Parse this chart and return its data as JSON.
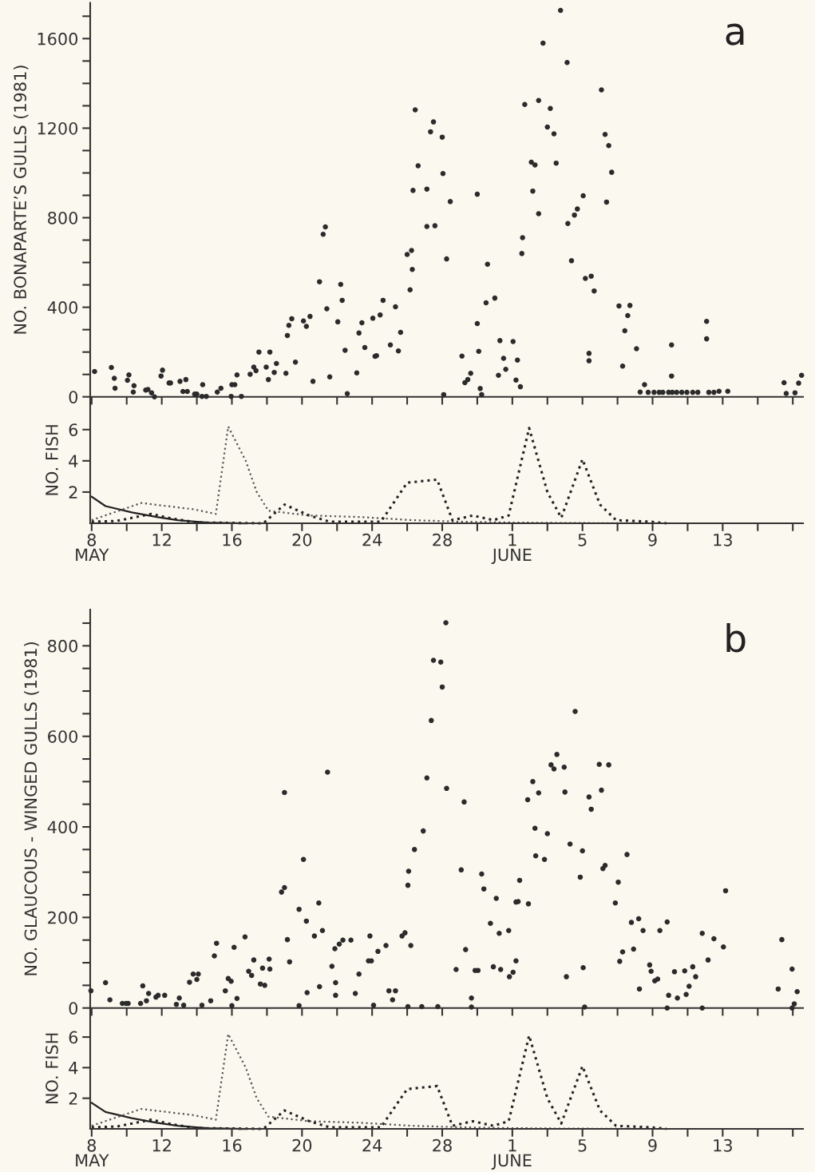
{
  "chart_data": [
    {
      "type": "scatter",
      "ylabel": "NO. BONAPARTE’S GULLS (1981)",
      "annotations": [
        "a"
      ],
      "marker": "circle",
      "grid": false,
      "tick_labels": "y",
      "xlim": [
        "1981-05-07T22:00",
        "1981-06-17T14:00"
      ],
      "ylim": [
        0,
        1760
      ],
      "xticks": [
        {
          "value": "1981-05-08",
          "label": null
        },
        {
          "value": "1981-05-10",
          "label": null
        },
        {
          "value": "1981-05-12",
          "label": null
        },
        {
          "value": "1981-05-14",
          "label": null
        },
        {
          "value": "1981-05-16",
          "label": null
        },
        {
          "value": "1981-05-18",
          "label": null
        },
        {
          "value": "1981-05-20",
          "label": null
        },
        {
          "value": "1981-05-22",
          "label": null
        },
        {
          "value": "1981-05-24",
          "label": null
        },
        {
          "value": "1981-05-26",
          "label": null
        },
        {
          "value": "1981-05-28",
          "label": null
        },
        {
          "value": "1981-05-30",
          "label": null
        },
        {
          "value": "1981-06-01",
          "label": null
        },
        {
          "value": "1981-06-03",
          "label": null
        },
        {
          "value": "1981-06-05",
          "label": null
        },
        {
          "value": "1981-06-07",
          "label": null
        },
        {
          "value": "1981-06-09",
          "label": null
        },
        {
          "value": "1981-06-11",
          "label": null
        },
        {
          "value": "1981-06-13",
          "label": null
        },
        {
          "value": "1981-06-15",
          "label": null
        },
        {
          "value": "1981-06-17",
          "label": null
        }
      ],
      "yticks": [
        0,
        {
          "value": 100,
          "label": null
        },
        {
          "value": 200,
          "label": null
        },
        {
          "value": 300,
          "label": null
        },
        400,
        {
          "value": 500,
          "label": null
        },
        {
          "value": 600,
          "label": null
        },
        {
          "value": 700,
          "label": null
        },
        800,
        {
          "value": 900,
          "label": null
        },
        {
          "value": 1000,
          "label": null
        },
        {
          "value": 1100,
          "label": null
        },
        1200,
        {
          "value": 1300,
          "label": null
        },
        {
          "value": 1400,
          "label": null
        },
        {
          "value": 1500,
          "label": null
        },
        1600,
        {
          "value": 1700,
          "label": null
        }
      ],
      "series": [
        {
          "color": "#2b2b2b",
          "x": [
            "1981-05-08T04:00",
            "1981-05-09T03:00",
            "1981-05-09T07:00",
            "1981-05-09T08:00",
            "1981-05-10T01:00",
            "1981-05-10T03:00",
            "1981-05-10T10:00",
            "1981-05-10T09:00",
            "1981-05-11T02:00",
            "1981-05-11T05:00",
            "1981-05-11T10:00",
            "1981-05-11T14:00",
            "1981-05-11T23:00",
            "1981-05-12T01:00",
            "1981-05-12T10:00",
            "1981-05-12T12:00",
            "1981-05-13T01:00",
            "1981-05-13T09:00",
            "1981-05-13T05:00",
            "1981-05-13T11:00",
            "1981-05-13T21:00",
            "1981-05-14T00:00",
            "1981-05-14T08:00",
            "1981-05-14T07:00",
            "1981-05-14T13:00",
            "1981-05-15T04:00",
            "1981-05-15T09:00",
            "1981-05-16T00:00",
            "1981-05-16T04:00",
            "1981-05-16T07:00",
            "1981-05-15T23:00",
            "1981-05-16T13:00",
            "1981-05-17T01:00",
            "1981-05-17T06:00",
            "1981-05-17T09:00",
            "1981-05-17T13:00",
            "1981-05-17T23:00",
            "1981-05-18T02:00",
            "1981-05-18T04:00",
            "1981-05-18T10:00",
            "1981-05-18T13:00",
            "1981-05-19T02:00",
            "1981-05-19T04:00",
            "1981-05-19T06:00",
            "1981-05-19T10:00",
            "1981-05-19T15:00",
            "1981-05-20T02:00",
            "1981-05-20T06:00",
            "1981-05-20T11:00",
            "1981-05-20T15:00",
            "1981-05-21T00:00",
            "1981-05-21T05:00",
            "1981-05-21T08:00",
            "1981-05-21T10:00",
            "1981-05-21T14:00",
            "1981-05-22T01:00",
            "1981-05-22T05:00",
            "1981-05-22T07:00",
            "1981-05-22T11:00",
            "1981-05-22T14:00",
            "1981-05-23T03:00",
            "1981-05-23T06:00",
            "1981-05-23T10:00",
            "1981-05-23T14:00",
            "1981-05-24T01:00",
            "1981-05-24T04:00",
            "1981-05-24T06:00",
            "1981-05-24T11:00",
            "1981-05-24T15:00",
            "1981-05-25T01:00",
            "1981-05-25T08:00",
            "1981-05-25T12:00",
            "1981-05-25T15:00",
            "1981-05-26T00:00",
            "1981-05-26T04:00",
            "1981-05-26T07:00",
            "1981-05-26T06:00",
            "1981-05-26T08:00",
            "1981-05-26T11:00",
            "1981-05-26T15:00",
            "1981-05-27T03:00",
            "1981-05-27T03:00",
            "1981-05-27T08:00",
            "1981-05-27T12:00",
            "1981-05-27T14:00",
            "1981-05-28T00:00",
            "1981-05-28T01:00",
            "1981-05-28T06:00",
            "1981-05-28T02:00",
            "1981-05-28T11:00",
            "1981-05-29T03:00",
            "1981-05-29T07:00",
            "1981-05-29T11:00",
            "1981-05-29T15:00",
            "1981-05-30T00:00",
            "1981-05-30T00:00",
            "1981-05-30T02:00",
            "1981-05-30T04:00",
            "1981-05-30T06:00",
            "1981-05-30T12:00",
            "1981-05-30T14:00",
            "1981-05-31T00:00",
            "1981-05-31T05:00",
            "1981-05-31T07:00",
            "1981-05-31T12:00",
            "1981-05-31T15:00",
            "1981-06-01T01:00",
            "1981-06-01T05:00",
            "1981-06-01T07:00",
            "1981-06-01T11:00",
            "1981-06-01T13:00",
            "1981-06-01T14:00",
            "1981-06-01T17:00",
            "1981-06-02T02:00",
            "1981-06-02T07:00",
            "1981-06-02T04:00",
            "1981-06-02T12:00",
            "1981-06-02T12:00",
            "1981-06-02T18:00",
            "1981-06-03T00:00",
            "1981-06-03T04:00",
            "1981-06-03T09:00",
            "1981-06-03T12:00",
            "1981-06-03T18:00",
            "1981-06-04T03:00",
            "1981-06-04T04:00",
            "1981-06-04T09:00",
            "1981-06-04T13:00",
            "1981-06-04T17:00",
            "1981-06-05T01:00",
            "1981-06-05T04:00",
            "1981-06-05T12:00",
            "1981-06-05T16:00",
            "1981-06-05T09:00",
            "1981-06-05T09:00",
            "1981-06-06T02:00",
            "1981-06-06T07:00",
            "1981-06-06T12:00",
            "1981-06-06T16:00",
            "1981-06-06T09:00",
            "1981-06-07T02:00",
            "1981-06-07T17:00",
            "1981-06-07T14:00",
            "1981-06-07T10:00",
            "1981-06-08T02:00",
            "1981-06-07T07:00",
            "1981-06-08T07:00",
            "1981-06-08T13:00",
            "1981-06-08T18:00",
            "1981-06-09T02:00",
            "1981-06-09T09:00",
            "1981-06-09T14:00",
            "1981-06-09T22:00",
            "1981-06-10T03:00",
            "1981-06-10T09:00",
            "1981-06-10T16:00",
            "1981-06-10T23:00",
            "1981-06-11T07:00",
            "1981-06-11T14:00",
            "1981-06-12T05:00",
            "1981-06-12T12:00",
            "1981-06-12T19:00",
            "1981-06-13T07:00",
            "1981-06-10T02:00",
            "1981-06-10T02:00",
            "1981-06-12T02:00",
            "1981-06-12T02:00",
            "1981-06-16T12:00",
            "1981-06-16T15:00",
            "1981-06-17T03:00",
            "1981-06-17T08:00",
            "1981-06-17T12:00"
          ],
          "values": [
            113,
            131,
            83,
            38,
            74,
            98,
            50,
            21,
            30,
            33,
            18,
            0,
            93,
            119,
            62,
            62,
            69,
            77,
            24,
            24,
            12,
            12,
            54,
            2,
            2,
            21,
            38,
            54,
            54,
            98,
            2,
            2,
            101,
            133,
            117,
            200,
            133,
            77,
            200,
            109,
            149,
            105,
            274,
            319,
            349,
            155,
            339,
            315,
            359,
            69,
            514,
            726,
            759,
            393,
            89,
            335,
            502,
            431,
            208,
            14,
            107,
            285,
            331,
            220,
            351,
            181,
            184,
            366,
            431,
            232,
            402,
            205,
            288,
            636,
            478,
            569,
            654,
            922,
            1282,
            1032,
            928,
            761,
            1184,
            1228,
            764,
            1160,
            997,
            616,
            10,
            872,
            182,
            63,
            77,
            105,
            905,
            327,
            203,
            37,
            10,
            420,
            592,
            441,
            96,
            251,
            172,
            123,
            247,
            75,
            164,
            45,
            640,
            711,
            1306,
            1048,
            1036,
            919,
            1324,
            818,
            1580,
            1205,
            1288,
            1175,
            1044,
            1726,
            1493,
            774,
            608,
            812,
            839,
            898,
            529,
            539,
            473,
            194,
            161,
            1371,
            1172,
            1122,
            1003,
            870,
            406,
            408,
            363,
            295,
            215,
            137,
            21,
            54,
            20,
            20,
            20,
            20,
            20,
            20,
            20,
            20,
            20,
            20,
            20,
            20,
            20,
            25,
            25,
            232,
            93,
            337,
            259,
            63,
            15,
            18,
            61,
            96
          ]
        }
      ]
    },
    {
      "type": "line",
      "ylabel": "NO. FISH",
      "grid": false,
      "line_style": "dotted",
      "xlim": [
        "1981-05-07T22:00",
        "1981-06-17T14:00"
      ],
      "ylim": [
        0,
        8.1
      ],
      "xticks": [
        {
          "value": "1981-05-08",
          "label": "8\nMAY"
        },
        {
          "value": "1981-05-10",
          "label": null
        },
        {
          "value": "1981-05-12",
          "label": "12"
        },
        {
          "value": "1981-05-14",
          "label": null
        },
        {
          "value": "1981-05-16",
          "label": "16"
        },
        {
          "value": "1981-05-18",
          "label": null
        },
        {
          "value": "1981-05-20",
          "label": "20"
        },
        {
          "value": "1981-05-22",
          "label": null
        },
        {
          "value": "1981-05-24",
          "label": "24"
        },
        {
          "value": "1981-05-26",
          "label": null
        },
        {
          "value": "1981-05-28",
          "label": "28"
        },
        {
          "value": "1981-05-30",
          "label": null
        },
        {
          "value": "1981-06-01",
          "label": "1\nJUNE"
        },
        {
          "value": "1981-06-03",
          "label": null
        },
        {
          "value": "1981-06-05",
          "label": "5"
        },
        {
          "value": "1981-06-07",
          "label": null
        },
        {
          "value": "1981-06-09",
          "label": "9"
        },
        {
          "value": "1981-06-11",
          "label": null
        },
        {
          "value": "1981-06-13",
          "label": "13"
        },
        {
          "value": "1981-06-15",
          "label": null
        },
        {
          "value": "1981-06-17",
          "label": null
        }
      ],
      "yticks": [
        2,
        4,
        6
      ],
      "series": [
        {
          "color": "#222222",
          "line_style": "solid",
          "x": [
            "1981-05-08T00:00",
            "1981-05-08T19:00",
            "1981-05-10T07:00",
            "1981-05-11T17:00",
            "1981-05-12T22:00",
            "1981-05-14T14:00",
            "1981-05-16T17:00"
          ],
          "values": [
            1.7,
            1.1,
            0.7,
            0.4,
            0.2,
            0.05,
            0
          ]
        },
        {
          "color": "#555555",
          "x": [
            "1981-05-08T00:00",
            "1981-05-10T20:00",
            "1981-05-13T19:00",
            "1981-05-15T02:00",
            "1981-05-15T19:00",
            "1981-05-16T19:00",
            "1981-05-17T10:00",
            "1981-05-18T02:00",
            "1981-05-20T10:00",
            "1981-05-23T08:00",
            "1981-05-26T07:00",
            "1981-05-29T05:00",
            "1981-06-01T00:00",
            "1981-06-04T00:00",
            "1981-06-08T14:00"
          ],
          "values": [
            0.2,
            1.3,
            0.9,
            0.6,
            6.2,
            4,
            2,
            0.8,
            0.5,
            0.4,
            0.2,
            0.1,
            0.05,
            0.02,
            0
          ]
        },
        {
          "color": "#222222",
          "x": [
            "1981-05-08T00:00",
            "1981-05-09T10:00",
            "1981-05-11T10:00",
            "1981-05-12T14:00",
            "1981-05-14T00:00",
            "1981-05-17T19:00",
            "1981-05-19T00:00",
            "1981-05-20T10:00",
            "1981-05-21T14:00",
            "1981-05-24T12:00",
            "1981-05-26T00:00",
            "1981-05-27T17:00",
            "1981-05-28T14:00",
            "1981-05-29T18:00",
            "1981-05-30T22:00",
            "1981-05-31T19:00",
            "1981-06-01T23:00",
            "1981-06-03T00:00",
            "1981-06-03T19:00",
            "1981-06-05T00:00",
            "1981-06-06T00:00",
            "1981-06-06T22:00",
            "1981-06-08T22:00",
            "1981-06-09T19:00"
          ],
          "values": [
            0.1,
            0.15,
            0.6,
            0.3,
            0.05,
            0,
            1.2,
            0.5,
            0.1,
            0.1,
            2.6,
            2.8,
            0.2,
            0.5,
            0.2,
            0.5,
            6.1,
            2,
            0.35,
            4.1,
            1.2,
            0.2,
            0.1,
            0
          ]
        }
      ]
    },
    {
      "type": "scatter",
      "ylabel": "NO. GLAUCOUS - WINGED GULLS (1981)",
      "annotations": [
        "b"
      ],
      "marker": "circle",
      "grid": false,
      "tick_labels": "y",
      "xlim": [
        "1981-05-07T22:00",
        "1981-06-17T14:00"
      ],
      "ylim": [
        0,
        880
      ],
      "xticks": [
        {
          "value": "1981-05-08",
          "label": null
        },
        {
          "value": "1981-05-10",
          "label": null
        },
        {
          "value": "1981-05-12",
          "label": null
        },
        {
          "value": "1981-05-14",
          "label": null
        },
        {
          "value": "1981-05-16",
          "label": null
        },
        {
          "value": "1981-05-18",
          "label": null
        },
        {
          "value": "1981-05-20",
          "label": null
        },
        {
          "value": "1981-05-22",
          "label": null
        },
        {
          "value": "1981-05-24",
          "label": null
        },
        {
          "value": "1981-05-26",
          "label": null
        },
        {
          "value": "1981-05-28",
          "label": null
        },
        {
          "value": "1981-05-30",
          "label": null
        },
        {
          "value": "1981-06-01",
          "label": null
        },
        {
          "value": "1981-06-03",
          "label": null
        },
        {
          "value": "1981-06-05",
          "label": null
        },
        {
          "value": "1981-06-07",
          "label": null
        },
        {
          "value": "1981-06-09",
          "label": null
        },
        {
          "value": "1981-06-11",
          "label": null
        },
        {
          "value": "1981-06-13",
          "label": null
        },
        {
          "value": "1981-06-15",
          "label": null
        },
        {
          "value": "1981-06-17",
          "label": null
        }
      ],
      "yticks": [
        0,
        {
          "value": 50,
          "label": null
        },
        {
          "value": 100,
          "label": null
        },
        {
          "value": 150,
          "label": null
        },
        200,
        {
          "value": 250,
          "label": null
        },
        {
          "value": 300,
          "label": null
        },
        {
          "value": 350,
          "label": null
        },
        400,
        {
          "value": 450,
          "label": null
        },
        {
          "value": 500,
          "label": null
        },
        {
          "value": 550,
          "label": null
        },
        600,
        {
          "value": 650,
          "label": null
        },
        {
          "value": 700,
          "label": null
        },
        {
          "value": 750,
          "label": null
        },
        800,
        {
          "value": 850,
          "label": null
        }
      ],
      "series": [
        {
          "color": "#2b2b2b",
          "x": [
            "1981-05-07T23:00",
            "1981-05-08T19:00",
            "1981-05-09T01:00",
            "1981-05-09T18:00",
            "1981-05-09T23:00",
            "1981-05-10T02:00",
            "1981-05-10T19:00",
            "1981-05-10T22:00",
            "1981-05-11T03:00",
            "1981-05-11T06:00",
            "1981-05-11T16:00",
            "1981-05-11T19:00",
            "1981-05-12T04:00",
            "1981-05-12T20:00",
            "1981-05-13T06:00",
            "1981-05-13T00:00",
            "1981-05-13T14:00",
            "1981-05-13T19:00",
            "1981-05-14T02:00",
            "1981-05-14T00:00",
            "1981-05-14T07:00",
            "1981-05-14T19:00",
            "1981-05-15T00:00",
            "1981-05-15T03:00",
            "1981-05-15T15:00",
            "1981-05-15T19:00",
            "1981-05-15T23:00",
            "1981-05-16T00:00",
            "1981-05-16T03:00",
            "1981-05-16T07:00",
            "1981-05-16T18:00",
            "1981-05-16T23:00",
            "1981-05-17T03:00",
            "1981-05-17T06:00",
            "1981-05-17T15:00",
            "1981-05-17T21:00",
            "1981-05-17T18:00",
            "1981-05-18T04:00",
            "1981-05-18T03:00",
            "1981-05-18T20:00",
            "1981-05-19T00:00",
            "1981-05-19T00:00",
            "1981-05-19T04:00",
            "1981-05-19T07:00",
            "1981-05-19T20:00",
            "1981-05-19T20:00",
            "1981-05-20T02:00",
            "1981-05-20T06:00",
            "1981-05-20T07:00",
            "1981-05-20T17:00",
            "1981-05-20T23:00",
            "1981-05-21T00:00",
            "1981-05-21T04:00",
            "1981-05-21T11:00",
            "1981-05-21T17:00",
            "1981-05-21T21:00",
            "1981-05-22T03:00",
            "1981-05-22T08:00",
            "1981-05-21T22:00",
            "1981-05-21T22:00",
            "1981-05-22T19:00",
            "1981-05-23T01:00",
            "1981-05-23T06:00",
            "1981-05-23T19:00",
            "1981-05-23T21:00",
            "1981-05-23T23:00",
            "1981-05-24T02:00",
            "1981-05-24T08:00",
            "1981-05-24T19:00",
            "1981-05-24T23:00",
            "1981-05-25T08:00",
            "1981-05-25T04:00",
            "1981-05-25T17:00",
            "1981-05-25T21:00",
            "1981-05-26T01:00",
            "1981-05-26T02:00",
            "1981-05-26T01:00",
            "1981-05-26T05:00",
            "1981-05-26T10:00",
            "1981-05-26T22:00",
            "1981-05-26T20:00",
            "1981-05-27T03:00",
            "1981-05-27T09:00",
            "1981-05-27T12:00",
            "1981-05-27T22:00",
            "1981-05-28T00:00",
            "1981-05-27T18:00",
            "1981-05-28T06:00",
            "1981-05-28T05:00",
            "1981-05-28T19:00",
            "1981-05-29T02:00",
            "1981-05-29T06:00",
            "1981-05-29T08:00",
            "1981-05-29T16:00",
            "1981-05-29T16:00",
            "1981-05-29T21:00",
            "1981-05-30T01:00",
            "1981-05-30T06:00",
            "1981-05-30T09:00",
            "1981-05-30T18:00",
            "1981-05-30T22:00",
            "1981-05-31T02:00",
            "1981-05-31T06:00",
            "1981-05-31T08:00",
            "1981-05-31T19:00",
            "1981-05-31T20:00",
            "1981-06-01T01:00",
            "1981-06-01T05:00",
            "1981-06-01T05:00",
            "1981-06-01T08:00",
            "1981-06-01T10:00",
            "1981-06-01T22:00",
            "1981-06-01T21:00",
            "1981-06-02T04:00",
            "1981-06-02T07:00",
            "1981-06-02T08:00",
            "1981-06-02T12:00",
            "1981-06-02T20:00",
            "1981-06-03T00:00",
            "1981-06-03T05:00",
            "1981-06-03T09:00",
            "1981-06-03T13:00",
            "1981-06-03T23:00",
            "1981-06-04T00:00",
            "1981-06-04T02:00",
            "1981-06-04T07:00",
            "1981-06-04T14:00",
            "1981-06-04T21:00",
            "1981-06-05T00:00",
            "1981-06-05T03:00",
            "1981-06-05T01:00",
            "1981-06-05T09:00",
            "1981-06-05T12:00",
            "1981-06-05T23:00",
            "1981-06-06T12:00",
            "1981-06-06T02:00",
            "1981-06-06T04:00",
            "1981-06-06T07:00",
            "1981-06-06T21:00",
            "1981-06-07T01:00",
            "1981-06-07T03:00",
            "1981-06-07T07:00",
            "1981-06-07T22:00",
            "1981-06-07T13:00",
            "1981-06-07T19:00",
            "1981-06-08T05:00",
            "1981-06-08T06:00",
            "1981-06-08T11:00",
            "1981-06-08T20:00",
            "1981-06-08T22:00",
            "1981-06-09T03:00",
            "1981-06-09T07:00",
            "1981-06-09T10:00",
            "1981-06-09T20:00",
            "1981-06-09T20:00",
            "1981-06-09T22:00",
            "1981-06-10T06:00",
            "1981-06-10T10:00",
            "1981-06-10T20:00",
            "1981-06-10T22:00",
            "1981-06-11T02:00",
            "1981-06-11T07:00",
            "1981-06-11T11:00",
            "1981-06-11T20:00",
            "1981-06-11T20:00",
            "1981-06-12T04:00",
            "1981-06-12T12:00",
            "1981-06-13T01:00",
            "1981-06-13T04:00",
            "1981-06-16T04:00",
            "1981-06-16T09:00",
            "1981-06-16T23:00",
            "1981-06-17T06:00",
            "1981-06-17T02:00",
            "1981-06-16T23:00"
          ],
          "values": [
            38,
            56,
            18,
            10,
            10,
            10,
            10,
            49,
            16,
            32,
            24,
            28,
            28,
            8,
            6,
            22,
            57,
            75,
            75,
            63,
            6,
            16,
            115,
            143,
            38,
            65,
            59,
            5,
            134,
            21,
            157,
            81,
            72,
            106,
            53,
            50,
            88,
            86,
            108,
            256,
            266,
            476,
            151,
            102,
            5,
            218,
            328,
            192,
            34,
            159,
            232,
            47,
            171,
            521,
            92,
            131,
            141,
            150,
            56,
            28,
            150,
            32,
            75,
            104,
            159,
            104,
            6,
            125,
            138,
            38,
            38,
            18,
            159,
            166,
            3,
            302,
            271,
            138,
            350,
            391,
            3,
            508,
            635,
            768,
            764,
            709,
            3,
            485,
            851,
            85,
            305,
            455,
            129,
            22,
            2,
            83,
            83,
            296,
            263,
            187,
            91,
            242,
            165,
            85,
            171,
            69,
            79,
            104,
            234,
            235,
            282,
            230,
            460,
            500,
            397,
            336,
            475,
            328,
            385,
            537,
            528,
            560,
            532,
            477,
            69,
            362,
            655,
            289,
            347,
            2,
            89,
            466,
            439,
            538,
            537,
            481,
            308,
            315,
            232,
            278,
            103,
            124,
            130,
            339,
            189,
            197,
            42,
            171,
            95,
            81,
            60,
            64,
            171,
            190,
            0,
            28,
            80,
            22,
            82,
            30,
            48,
            91,
            69,
            165,
            0,
            106,
            153,
            135,
            259,
            42,
            151,
            86,
            36,
            9,
            0
          ]
        }
      ]
    },
    {
      "type": "line",
      "ylabel": "NO. FISH",
      "grid": false,
      "line_style": "dotted",
      "xlim": [
        "1981-05-07T22:00",
        "1981-06-17T14:00"
      ],
      "ylim": [
        0,
        7.9
      ],
      "xticks": [
        {
          "value": "1981-05-08",
          "label": "8\nMAY"
        },
        {
          "value": "1981-05-10",
          "label": null
        },
        {
          "value": "1981-05-12",
          "label": "12"
        },
        {
          "value": "1981-05-14",
          "label": null
        },
        {
          "value": "1981-05-16",
          "label": "16"
        },
        {
          "value": "1981-05-18",
          "label": null
        },
        {
          "value": "1981-05-20",
          "label": "20"
        },
        {
          "value": "1981-05-22",
          "label": null
        },
        {
          "value": "1981-05-24",
          "label": "24"
        },
        {
          "value": "1981-05-26",
          "label": null
        },
        {
          "value": "1981-05-28",
          "label": "28"
        },
        {
          "value": "1981-05-30",
          "label": null
        },
        {
          "value": "1981-06-01",
          "label": "1\nJUNE"
        },
        {
          "value": "1981-06-03",
          "label": null
        },
        {
          "value": "1981-06-05",
          "label": "5"
        },
        {
          "value": "1981-06-07",
          "label": null
        },
        {
          "value": "1981-06-09",
          "label": "9"
        },
        {
          "value": "1981-06-11",
          "label": null
        },
        {
          "value": "1981-06-13",
          "label": "13"
        },
        {
          "value": "1981-06-15",
          "label": null
        },
        {
          "value": "1981-06-17",
          "label": null
        }
      ],
      "yticks": [
        2,
        4,
        6
      ],
      "series": [
        {
          "color": "#222222",
          "line_style": "solid",
          "x": [
            "1981-05-08T00:00",
            "1981-05-08T19:00",
            "1981-05-10T07:00",
            "1981-05-11T17:00",
            "1981-05-12T22:00",
            "1981-05-14T14:00",
            "1981-05-16T17:00"
          ],
          "values": [
            1.7,
            1.1,
            0.7,
            0.4,
            0.2,
            0.05,
            0
          ]
        },
        {
          "color": "#555555",
          "x": [
            "1981-05-08T00:00",
            "1981-05-10T20:00",
            "1981-05-13T19:00",
            "1981-05-15T02:00",
            "1981-05-15T19:00",
            "1981-05-16T19:00",
            "1981-05-17T10:00",
            "1981-05-18T02:00",
            "1981-05-20T10:00",
            "1981-05-23T08:00",
            "1981-05-26T07:00",
            "1981-05-29T05:00",
            "1981-06-01T00:00",
            "1981-06-04T00:00",
            "1981-06-08T14:00"
          ],
          "values": [
            0.2,
            1.3,
            0.9,
            0.6,
            6.2,
            4,
            2,
            0.8,
            0.5,
            0.4,
            0.2,
            0.1,
            0.05,
            0.02,
            0
          ]
        },
        {
          "color": "#222222",
          "x": [
            "1981-05-08T00:00",
            "1981-05-09T10:00",
            "1981-05-11T10:00",
            "1981-05-12T14:00",
            "1981-05-14T00:00",
            "1981-05-17T19:00",
            "1981-05-19T00:00",
            "1981-05-20T10:00",
            "1981-05-21T14:00",
            "1981-05-24T12:00",
            "1981-05-26T00:00",
            "1981-05-27T17:00",
            "1981-05-28T14:00",
            "1981-05-29T18:00",
            "1981-05-30T22:00",
            "1981-05-31T19:00",
            "1981-06-01T23:00",
            "1981-06-03T00:00",
            "1981-06-03T19:00",
            "1981-06-05T00:00",
            "1981-06-06T00:00",
            "1981-06-06T22:00",
            "1981-06-08T22:00",
            "1981-06-09T19:00"
          ],
          "values": [
            0.1,
            0.15,
            0.6,
            0.3,
            0.05,
            0,
            1.2,
            0.5,
            0.1,
            0.1,
            2.6,
            2.8,
            0.2,
            0.5,
            0.2,
            0.5,
            6.1,
            2,
            0.35,
            4.1,
            1.2,
            0.2,
            0.1,
            0
          ]
        }
      ]
    }
  ]
}
